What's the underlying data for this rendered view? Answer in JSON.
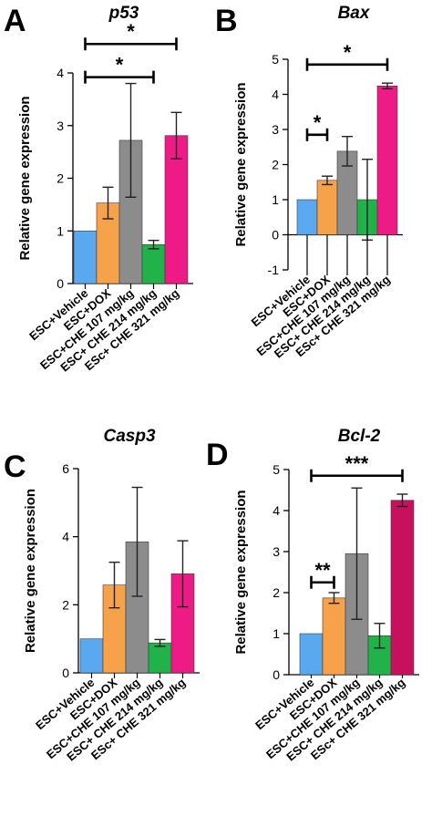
{
  "chart_data": [
    {
      "type": "bar",
      "panel": "A",
      "title": "p53",
      "ylabel": "Relative gene expression",
      "ylim": [
        0,
        4
      ],
      "yticks": [
        0,
        1,
        2,
        3,
        4
      ],
      "categories": [
        "ESC+Vehicle",
        "ESC+DOX",
        "ESC+CHE 107 mg/kg",
        "ESC+ CHE 214 mg/kg",
        "ESc+ CHE 321 mg/kg"
      ],
      "values": [
        1.0,
        1.53,
        2.72,
        0.74,
        2.81
      ],
      "errors": [
        0,
        0.3,
        1.08,
        0.08,
        0.44
      ],
      "colors": [
        "#5aa9f0",
        "#f5a24a",
        "#8c8c8c",
        "#22b24a",
        "#ee1a86"
      ],
      "significance": [
        {
          "from": 0,
          "to": 3,
          "y": 3.92,
          "label": "*"
        },
        {
          "from": 0,
          "to": 4,
          "y": 4.55,
          "label": "*"
        }
      ]
    },
    {
      "type": "bar",
      "panel": "B",
      "title": "Bax",
      "ylabel": "Relative gene expression",
      "ylim": [
        -1,
        5
      ],
      "yticks": [
        -1,
        0,
        1,
        2,
        3,
        4,
        5
      ],
      "categories": [
        "ESC+Vehicle",
        "ESC+DOX",
        "ESC+CHE 107 mg/kg",
        "ESC+ CHE 214 mg/kg",
        "ESc+ CHE 321 mg/kg"
      ],
      "values": [
        1.0,
        1.55,
        2.38,
        1.0,
        4.24
      ],
      "errors": [
        0,
        0.12,
        0.42,
        1.15,
        0.08
      ],
      "colors": [
        "#5aa9f0",
        "#f5a24a",
        "#8c8c8c",
        "#22b24a",
        "#ee1a86"
      ],
      "significance": [
        {
          "from": 0,
          "to": 1,
          "y": 2.85,
          "label": "*"
        },
        {
          "from": 0,
          "to": 4,
          "y": 4.85,
          "label": "*"
        }
      ]
    },
    {
      "type": "bar",
      "panel": "C",
      "title": "Casp3",
      "ylabel": "Relative gene expression",
      "ylim": [
        0,
        6
      ],
      "yticks": [
        0,
        2,
        4,
        6
      ],
      "categories": [
        "ESC+Vehicle",
        "ESC+DOX",
        "ESC+CHE 107 mg/kg",
        "ESC+ CHE 214 mg/kg",
        "ESc+ CHE 321 mg/kg"
      ],
      "values": [
        1.0,
        2.58,
        3.85,
        0.88,
        2.91
      ],
      "errors": [
        0,
        0.67,
        1.6,
        0.1,
        0.97
      ],
      "colors": [
        "#5aa9f0",
        "#f5a24a",
        "#8c8c8c",
        "#22b24a",
        "#ee1a86"
      ],
      "significance": []
    },
    {
      "type": "bar",
      "panel": "D",
      "title": "Bcl-2",
      "ylabel": "Relative gene expression",
      "ylim": [
        0,
        5
      ],
      "yticks": [
        0,
        1,
        2,
        3,
        4,
        5
      ],
      "categories": [
        "ESC+Vehicle",
        "ESC+DOX",
        "ESC+CHE 107 mg/kg",
        "ESC+ CHE 214 mg/kg",
        "ESc+ CHE 321 mg/kg"
      ],
      "values": [
        1.0,
        1.87,
        2.95,
        0.95,
        4.25
      ],
      "errors": [
        0,
        0.13,
        1.6,
        0.3,
        0.15
      ],
      "colors": [
        "#5aa9f0",
        "#f5a24a",
        "#8c8c8c",
        "#22b24a",
        "#c8115e"
      ],
      "significance": [
        {
          "from": 0,
          "to": 1,
          "y": 2.25,
          "label": "**"
        },
        {
          "from": 0,
          "to": 4,
          "y": 4.85,
          "label": "***"
        }
      ]
    }
  ]
}
